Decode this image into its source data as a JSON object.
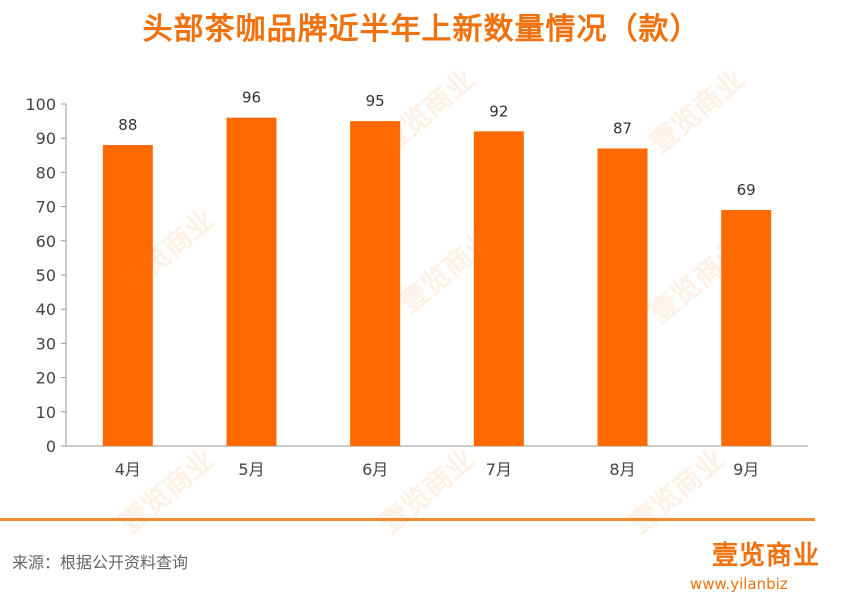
{
  "header": {
    "title": "头部茶咖品牌近半年上新数量情况（款）"
  },
  "chart_data": {
    "type": "bar",
    "title": "头部茶咖品牌近半年上新数量情况（款）",
    "categories": [
      "4月",
      "5月",
      "6月",
      "7月",
      "8月",
      "9月"
    ],
    "values": [
      88,
      96,
      95,
      92,
      87,
      69
    ],
    "ylim": [
      0,
      100
    ],
    "yticks": [
      0,
      10,
      20,
      30,
      40,
      50,
      60,
      70,
      80,
      90,
      100
    ],
    "xlabel": "",
    "ylabel": "",
    "grid": false,
    "bar_color": "#ff6a00",
    "data_labels": true
  },
  "footer": {
    "source": "来源：根据公开资料查询",
    "brand": "壹览商业",
    "url": "www.yilanbiz"
  },
  "colors": {
    "accent": "#f0720f",
    "bar": "#ff6a00",
    "divider": "#f28a2c"
  }
}
